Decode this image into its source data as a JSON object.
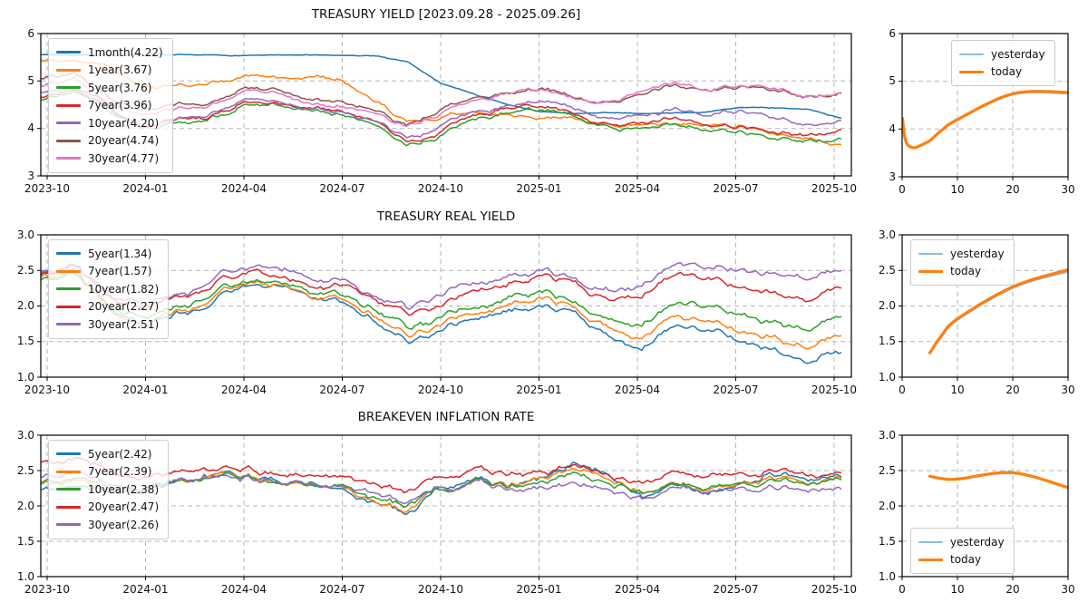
{
  "page": {
    "background": "#ffffff"
  },
  "titles": {
    "row1": "TREASURY YIELD [2023.09.28 - 2025.09.26]",
    "row2": "TREASURY REAL YIELD",
    "row3": "BREAKEVEN INFLATION RATE"
  },
  "chart_data": [
    {
      "id": "treasury-yield-history",
      "type": "line",
      "title": "TREASURY YIELD [2023.09.28 - 2025.09.26]",
      "x_tick_labels": [
        "2023-10",
        "2024-01",
        "2024-04",
        "2024-07",
        "2024-10",
        "2025-01",
        "2025-04",
        "2025-07",
        "2025-10"
      ],
      "ylim": [
        3,
        6
      ],
      "y_ticks": [
        3,
        4,
        5,
        6
      ],
      "y_tick_labels": [
        "3",
        "4",
        "5",
        "6"
      ],
      "grid_y": [
        4,
        5
      ],
      "grid": "dashed",
      "legend_position": "upper left",
      "months_span": 24,
      "series": [
        {
          "name": "1month",
          "latest": 4.22,
          "legend_label": "1month(4.22)",
          "color": "#1f77b4",
          "monthly_values": [
            5.56,
            5.55,
            5.55,
            5.54,
            5.55,
            5.55,
            5.54,
            5.55,
            5.55,
            5.54,
            5.52,
            5.4,
            4.95,
            4.72,
            4.5,
            4.35,
            4.32,
            4.33,
            4.31,
            4.33,
            4.35,
            4.45,
            4.43,
            4.4,
            4.22
          ]
        },
        {
          "name": "1year",
          "latest": 3.67,
          "legend_label": "1year(3.67)",
          "color": "#ff7f0e",
          "monthly_values": [
            5.46,
            5.42,
            5.25,
            4.82,
            4.88,
            4.98,
            5.08,
            5.15,
            5.12,
            5.05,
            4.5,
            4.08,
            4.2,
            4.32,
            4.3,
            4.22,
            4.25,
            4.12,
            4.02,
            4.08,
            4.12,
            4.08,
            3.92,
            3.8,
            3.67
          ]
        },
        {
          "name": "5year",
          "latest": 3.76,
          "legend_label": "5year(3.76)",
          "color": "#2ca02c",
          "monthly_values": [
            4.62,
            4.83,
            4.42,
            3.92,
            4.12,
            4.22,
            4.5,
            4.58,
            4.45,
            4.32,
            3.98,
            3.58,
            3.85,
            4.18,
            4.35,
            4.42,
            4.3,
            4.02,
            3.92,
            4.05,
            4.0,
            3.92,
            3.83,
            3.73,
            3.76
          ]
        },
        {
          "name": "7year",
          "latest": 3.96,
          "legend_label": "7year(3.96)",
          "color": "#d62728",
          "monthly_values": [
            4.7,
            4.88,
            4.46,
            3.98,
            4.18,
            4.28,
            4.55,
            4.62,
            4.48,
            4.36,
            4.05,
            3.65,
            3.92,
            4.25,
            4.42,
            4.48,
            4.36,
            4.1,
            4.05,
            4.18,
            4.1,
            4.05,
            3.97,
            3.87,
            3.96
          ]
        },
        {
          "name": "10year",
          "latest": 4.2,
          "legend_label": "10year(4.20)",
          "color": "#9467bd",
          "monthly_values": [
            4.78,
            4.9,
            4.3,
            4.02,
            4.22,
            4.32,
            4.6,
            4.63,
            4.45,
            4.38,
            4.05,
            3.72,
            4.02,
            4.32,
            4.5,
            4.58,
            4.45,
            4.22,
            4.25,
            4.42,
            4.3,
            4.38,
            4.26,
            4.12,
            4.2
          ]
        },
        {
          "name": "20year",
          "latest": 4.74,
          "legend_label": "20year(4.74)",
          "color": "#8c564b",
          "monthly_values": [
            5.08,
            5.2,
            4.6,
            4.32,
            4.5,
            4.58,
            4.85,
            4.88,
            4.68,
            4.6,
            4.3,
            4.02,
            4.38,
            4.62,
            4.78,
            4.88,
            4.73,
            4.58,
            4.68,
            4.92,
            4.82,
            4.9,
            4.83,
            4.68,
            4.74
          ]
        },
        {
          "name": "30year",
          "latest": 4.77,
          "legend_label": "30year(4.77)",
          "color": "#e377c2",
          "monthly_values": [
            4.92,
            5.05,
            4.45,
            4.22,
            4.4,
            4.48,
            4.76,
            4.78,
            4.58,
            4.5,
            4.22,
            3.98,
            4.32,
            4.58,
            4.73,
            4.82,
            4.68,
            4.55,
            4.7,
            4.95,
            4.84,
            4.92,
            4.88,
            4.7,
            4.77
          ]
        }
      ]
    },
    {
      "id": "treasury-yield-curve",
      "type": "line",
      "xlim": [
        0,
        30
      ],
      "x_tick_labels": [
        "0",
        "10",
        "20",
        "30"
      ],
      "x_ticks": [
        0,
        10,
        20,
        30
      ],
      "ylim": [
        3,
        6
      ],
      "y_ticks": [
        3,
        4,
        5,
        6
      ],
      "y_tick_labels": [
        "3",
        "4",
        "5",
        "6"
      ],
      "grid_y": [
        4,
        5
      ],
      "grid_x": [
        10,
        20
      ],
      "legend_position": "upper right",
      "series": [
        {
          "name": "yesterday",
          "color": "#8fbcdb",
          "width": 1.6,
          "x": [
            0.08,
            0.25,
            0.5,
            1,
            2,
            3,
            5,
            7,
            10,
            20,
            30
          ],
          "values": [
            4.21,
            4.01,
            3.81,
            3.66,
            3.6,
            3.63,
            3.75,
            3.95,
            4.18,
            4.72,
            4.74
          ]
        },
        {
          "name": "today",
          "color": "#ff7f0e",
          "width": 3.2,
          "x": [
            0.08,
            0.25,
            0.5,
            1,
            2,
            3,
            5,
            7,
            10,
            20,
            30
          ],
          "values": [
            4.22,
            4.02,
            3.82,
            3.67,
            3.61,
            3.64,
            3.76,
            3.96,
            4.2,
            4.74,
            4.77
          ]
        }
      ]
    },
    {
      "id": "treasury-real-yield-history",
      "type": "line",
      "title": "TREASURY REAL YIELD",
      "x_tick_labels": [
        "2023-10",
        "2024-01",
        "2024-04",
        "2024-07",
        "2024-10",
        "2025-01",
        "2025-04",
        "2025-07",
        "2025-10"
      ],
      "ylim": [
        1,
        3
      ],
      "y_ticks": [
        1.0,
        1.5,
        2.0,
        2.5,
        3.0
      ],
      "y_tick_labels": [
        "1.0",
        "1.5",
        "2.0",
        "2.5",
        "3.0"
      ],
      "grid_y": [
        1.5,
        2.0,
        2.5
      ],
      "grid": "dashed",
      "legend_position": "upper left",
      "months_span": 24,
      "series": [
        {
          "name": "5year",
          "latest": 1.34,
          "legend_label": "5year(1.34)",
          "color": "#1f77b4",
          "monthly_values": [
            2.42,
            2.52,
            1.98,
            1.72,
            1.88,
            1.95,
            2.22,
            2.32,
            2.15,
            2.08,
            1.78,
            1.5,
            1.62,
            1.85,
            1.95,
            2.05,
            1.88,
            1.55,
            1.45,
            1.72,
            1.62,
            1.55,
            1.42,
            1.22,
            1.34
          ]
        },
        {
          "name": "7year",
          "latest": 1.57,
          "legend_label": "7year(1.57)",
          "color": "#ff7f0e",
          "monthly_values": [
            2.38,
            2.48,
            2.0,
            1.78,
            1.93,
            2.0,
            2.26,
            2.34,
            2.18,
            2.12,
            1.84,
            1.57,
            1.7,
            1.93,
            2.03,
            2.13,
            1.95,
            1.68,
            1.62,
            1.85,
            1.76,
            1.7,
            1.57,
            1.4,
            1.57
          ]
        },
        {
          "name": "10year",
          "latest": 1.82,
          "legend_label": "10year(1.82)",
          "color": "#2ca02c",
          "monthly_values": [
            2.35,
            2.46,
            2.03,
            1.84,
            1.98,
            2.05,
            2.31,
            2.38,
            2.22,
            2.17,
            1.93,
            1.66,
            1.8,
            2.03,
            2.13,
            2.23,
            2.05,
            1.83,
            1.83,
            2.05,
            1.95,
            1.9,
            1.8,
            1.66,
            1.82
          ]
        },
        {
          "name": "20year",
          "latest": 2.27,
          "legend_label": "20year(2.27)",
          "color": "#d62728",
          "monthly_values": [
            2.44,
            2.56,
            2.16,
            1.98,
            2.13,
            2.19,
            2.44,
            2.49,
            2.34,
            2.29,
            2.08,
            1.87,
            2.0,
            2.24,
            2.34,
            2.44,
            2.28,
            2.1,
            2.2,
            2.42,
            2.35,
            2.35,
            2.25,
            2.08,
            2.27
          ]
        },
        {
          "name": "30year",
          "latest": 2.51,
          "legend_label": "30year(2.51)",
          "color": "#9467bd",
          "monthly_values": [
            2.46,
            2.58,
            2.22,
            2.04,
            2.19,
            2.25,
            2.5,
            2.55,
            2.4,
            2.35,
            2.17,
            1.95,
            2.1,
            2.34,
            2.44,
            2.54,
            2.38,
            2.24,
            2.4,
            2.62,
            2.55,
            2.56,
            2.48,
            2.38,
            2.51
          ]
        }
      ]
    },
    {
      "id": "treasury-real-yield-curve",
      "type": "line",
      "xlim": [
        0,
        30
      ],
      "x_tick_labels": [
        "0",
        "10",
        "20",
        "30"
      ],
      "x_ticks": [
        0,
        10,
        20,
        30
      ],
      "ylim": [
        1,
        3
      ],
      "y_ticks": [
        1.0,
        1.5,
        2.0,
        2.5,
        3.0
      ],
      "y_tick_labels": [
        "1.0",
        "1.5",
        "2.0",
        "2.5",
        "3.0"
      ],
      "grid_y": [
        1.5,
        2.0,
        2.5
      ],
      "grid_x": [
        10,
        20
      ],
      "legend_position": "upper left",
      "series": [
        {
          "name": "yesterday",
          "color": "#8fbcdb",
          "width": 1.6,
          "x": [
            5,
            7,
            10,
            20,
            30
          ],
          "values": [
            1.33,
            1.55,
            1.8,
            2.25,
            2.48
          ]
        },
        {
          "name": "today",
          "color": "#ff7f0e",
          "width": 3.2,
          "x": [
            5,
            7,
            10,
            20,
            30
          ],
          "values": [
            1.34,
            1.57,
            1.82,
            2.27,
            2.51
          ]
        }
      ]
    },
    {
      "id": "breakeven-inflation-history",
      "type": "line",
      "title": "BREAKEVEN INFLATION RATE",
      "x_tick_labels": [
        "2023-10",
        "2024-01",
        "2024-04",
        "2024-07",
        "2024-10",
        "2025-01",
        "2025-04",
        "2025-07",
        "2025-10"
      ],
      "ylim": [
        1,
        3
      ],
      "y_ticks": [
        1.0,
        1.5,
        2.0,
        2.5,
        3.0
      ],
      "y_tick_labels": [
        "1.0",
        "1.5",
        "2.0",
        "2.5",
        "3.0"
      ],
      "grid_y": [
        1.5,
        2.0,
        2.5
      ],
      "grid": "dashed",
      "legend_position": "upper left",
      "months_span": 24,
      "series": [
        {
          "name": "5year",
          "latest": 2.42,
          "legend_label": "5year(2.42)",
          "color": "#1f77b4",
          "monthly_values": [
            2.24,
            2.32,
            2.18,
            2.24,
            2.32,
            2.42,
            2.42,
            2.38,
            2.32,
            2.3,
            2.1,
            1.88,
            2.28,
            2.38,
            2.3,
            2.42,
            2.6,
            2.52,
            2.16,
            2.34,
            2.3,
            2.38,
            2.47,
            2.42,
            2.42
          ]
        },
        {
          "name": "7year",
          "latest": 2.39,
          "legend_label": "7year(2.39)",
          "color": "#ff7f0e",
          "monthly_values": [
            2.32,
            2.38,
            2.24,
            2.27,
            2.33,
            2.42,
            2.42,
            2.38,
            2.33,
            2.3,
            2.12,
            1.95,
            2.29,
            2.37,
            2.31,
            2.4,
            2.5,
            2.45,
            2.18,
            2.32,
            2.28,
            2.35,
            2.43,
            2.38,
            2.39
          ]
        },
        {
          "name": "10year",
          "latest": 2.38,
          "legend_label": "10year(2.38)",
          "color": "#2ca02c",
          "monthly_values": [
            2.35,
            2.41,
            2.28,
            2.29,
            2.32,
            2.4,
            2.4,
            2.36,
            2.3,
            2.28,
            2.15,
            2.0,
            2.29,
            2.35,
            2.3,
            2.37,
            2.44,
            2.4,
            2.2,
            2.31,
            2.3,
            2.34,
            2.41,
            2.37,
            2.38
          ]
        },
        {
          "name": "20year",
          "latest": 2.47,
          "legend_label": "20year(2.47)",
          "color": "#d62728",
          "monthly_values": [
            2.64,
            2.74,
            2.48,
            2.44,
            2.45,
            2.5,
            2.5,
            2.47,
            2.44,
            2.42,
            2.34,
            2.18,
            2.44,
            2.5,
            2.45,
            2.49,
            2.54,
            2.5,
            2.35,
            2.49,
            2.47,
            2.49,
            2.51,
            2.47,
            2.47
          ]
        },
        {
          "name": "30year",
          "latest": 2.26,
          "legend_label": "30year(2.26)",
          "color": "#9467bd",
          "monthly_values": [
            2.42,
            2.5,
            2.34,
            2.34,
            2.35,
            2.4,
            2.38,
            2.35,
            2.32,
            2.3,
            2.21,
            2.08,
            2.29,
            2.31,
            2.27,
            2.3,
            2.32,
            2.3,
            2.14,
            2.27,
            2.27,
            2.29,
            2.31,
            2.27,
            2.26
          ]
        }
      ]
    },
    {
      "id": "breakeven-inflation-curve",
      "type": "line",
      "xlim": [
        0,
        30
      ],
      "x_tick_labels": [
        "0",
        "10",
        "20",
        "30"
      ],
      "x_ticks": [
        0,
        10,
        20,
        30
      ],
      "ylim": [
        1,
        3
      ],
      "y_ticks": [
        1.0,
        1.5,
        2.0,
        2.5,
        3.0
      ],
      "y_tick_labels": [
        "1.0",
        "1.5",
        "2.0",
        "2.5",
        "3.0"
      ],
      "grid_y": [
        1.5,
        2.0,
        2.5
      ],
      "grid_x": [
        10,
        20
      ],
      "legend_position": "lower left",
      "series": [
        {
          "name": "yesterday",
          "color": "#8fbcdb",
          "width": 1.6,
          "x": [
            5,
            7,
            10,
            20,
            30
          ],
          "values": [
            2.41,
            2.38,
            2.37,
            2.46,
            2.25
          ]
        },
        {
          "name": "today",
          "color": "#ff7f0e",
          "width": 3.2,
          "x": [
            5,
            7,
            10,
            20,
            30
          ],
          "values": [
            2.42,
            2.39,
            2.38,
            2.47,
            2.26
          ]
        }
      ]
    }
  ]
}
